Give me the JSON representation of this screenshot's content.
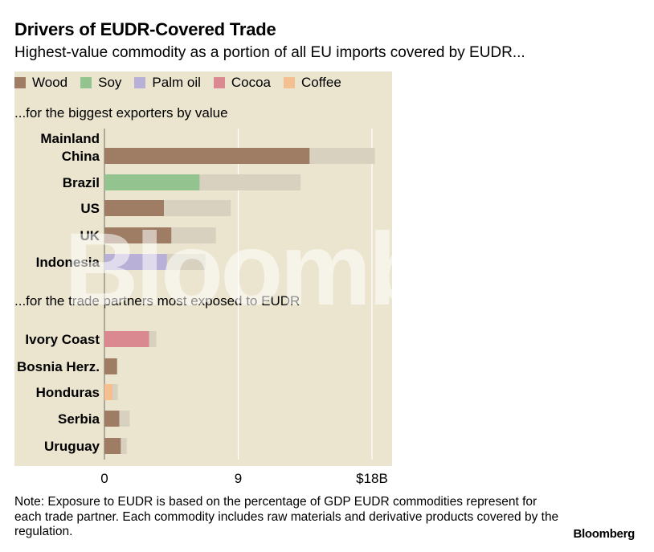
{
  "title": "Drivers of EUDR-Covered Trade",
  "subtitle": "Highest-value commodity as a portion of all EU imports covered by EUDR...",
  "legend": [
    {
      "label": "Wood",
      "color": "#9e7d64"
    },
    {
      "label": "Soy",
      "color": "#93c490"
    },
    {
      "label": "Palm oil",
      "color": "#b8b0d6"
    },
    {
      "label": "Cocoa",
      "color": "#d9898f"
    },
    {
      "label": "Coffee",
      "color": "#f4bf91"
    }
  ],
  "sections": {
    "top": "...for the biggest exporters by value",
    "bottom": "...for the trade partners most exposed to EUDR"
  },
  "note": "Note: Exposure to EUDR is based on the percentage of GDP EUDR commodities represent for each trade partner. Each commodity includes raw materials and derivative products covered by the regulation.",
  "brand": "Bloomberg",
  "watermark": "Bloomberg",
  "chart_data": {
    "type": "bar",
    "orientation": "horizontal",
    "stacked": true,
    "xlim": [
      0,
      18
    ],
    "x_ticks": [
      "0",
      "9",
      "$18B"
    ],
    "groups": [
      {
        "label": "...for the biggest exporters by value",
        "bars": [
          {
            "category": "Mainland China",
            "highlight": "Wood",
            "highlight_value": 13.8,
            "total": 18.2
          },
          {
            "category": "Brazil",
            "highlight": "Soy",
            "highlight_value": 6.4,
            "total": 13.2
          },
          {
            "category": "US",
            "highlight": "Wood",
            "highlight_value": 4.0,
            "total": 8.5
          },
          {
            "category": "UK",
            "highlight": "Wood",
            "highlight_value": 4.5,
            "total": 7.5
          },
          {
            "category": "Indonesia",
            "highlight": "Palm oil",
            "highlight_value": 4.2,
            "total": 6.8
          }
        ]
      },
      {
        "label": "...for the trade partners most exposed to EUDR",
        "bars": [
          {
            "category": "Ivory Coast",
            "highlight": "Cocoa",
            "highlight_value": 3.0,
            "total": 3.5
          },
          {
            "category": "Bosnia Herz.",
            "highlight": "Wood",
            "highlight_value": 0.85,
            "total": 0.85
          },
          {
            "category": "Honduras",
            "highlight": "Coffee",
            "highlight_value": 0.55,
            "total": 0.9
          },
          {
            "category": "Serbia",
            "highlight": "Wood",
            "highlight_value": 1.0,
            "total": 1.7
          },
          {
            "category": "Uruguay",
            "highlight": "Wood",
            "highlight_value": 1.1,
            "total": 1.5
          }
        ]
      }
    ],
    "other_color": "#d8d1bf"
  }
}
